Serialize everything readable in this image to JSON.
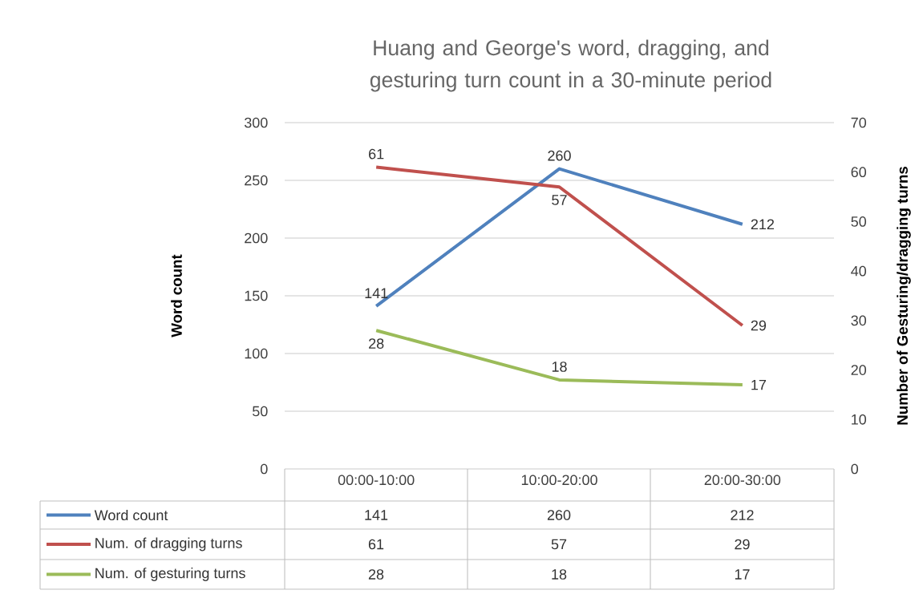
{
  "chart_data": {
    "type": "line",
    "title": "Huang and George's word, dragging, and gesturing turn count in a 30-minute period",
    "categories": [
      "00:00-10:00",
      "10:00-20:00",
      "20:00-30:00"
    ],
    "series": [
      {
        "name": "Word count",
        "color": "#4f81bd",
        "values": [
          141,
          260,
          212
        ],
        "value_labels": [
          "141",
          "260",
          "212"
        ]
      },
      {
        "name": "Num. of dragging turns",
        "color": "#c0504d",
        "values": [
          61,
          57,
          29
        ],
        "value_labels": [
          "61",
          "57",
          "29"
        ],
        "axis": "y2"
      },
      {
        "name": "Num. of gesturing turns",
        "color": "#9bbb59",
        "values": [
          28,
          18,
          17
        ],
        "value_labels": [
          "28",
          "18",
          "17"
        ],
        "axis": "y2"
      }
    ],
    "ylabel": "Word count",
    "y2label": "Number of Gesturing/dragging turns",
    "ylim": [
      0,
      300
    ],
    "yticks": [
      0,
      50,
      100,
      150,
      200,
      250,
      300
    ],
    "y2lim": [
      0,
      70
    ],
    "y2ticks": [
      0,
      10,
      20,
      30,
      40,
      50,
      60,
      70
    ],
    "grid": "y",
    "legend": "bottom",
    "data_labels": true
  }
}
